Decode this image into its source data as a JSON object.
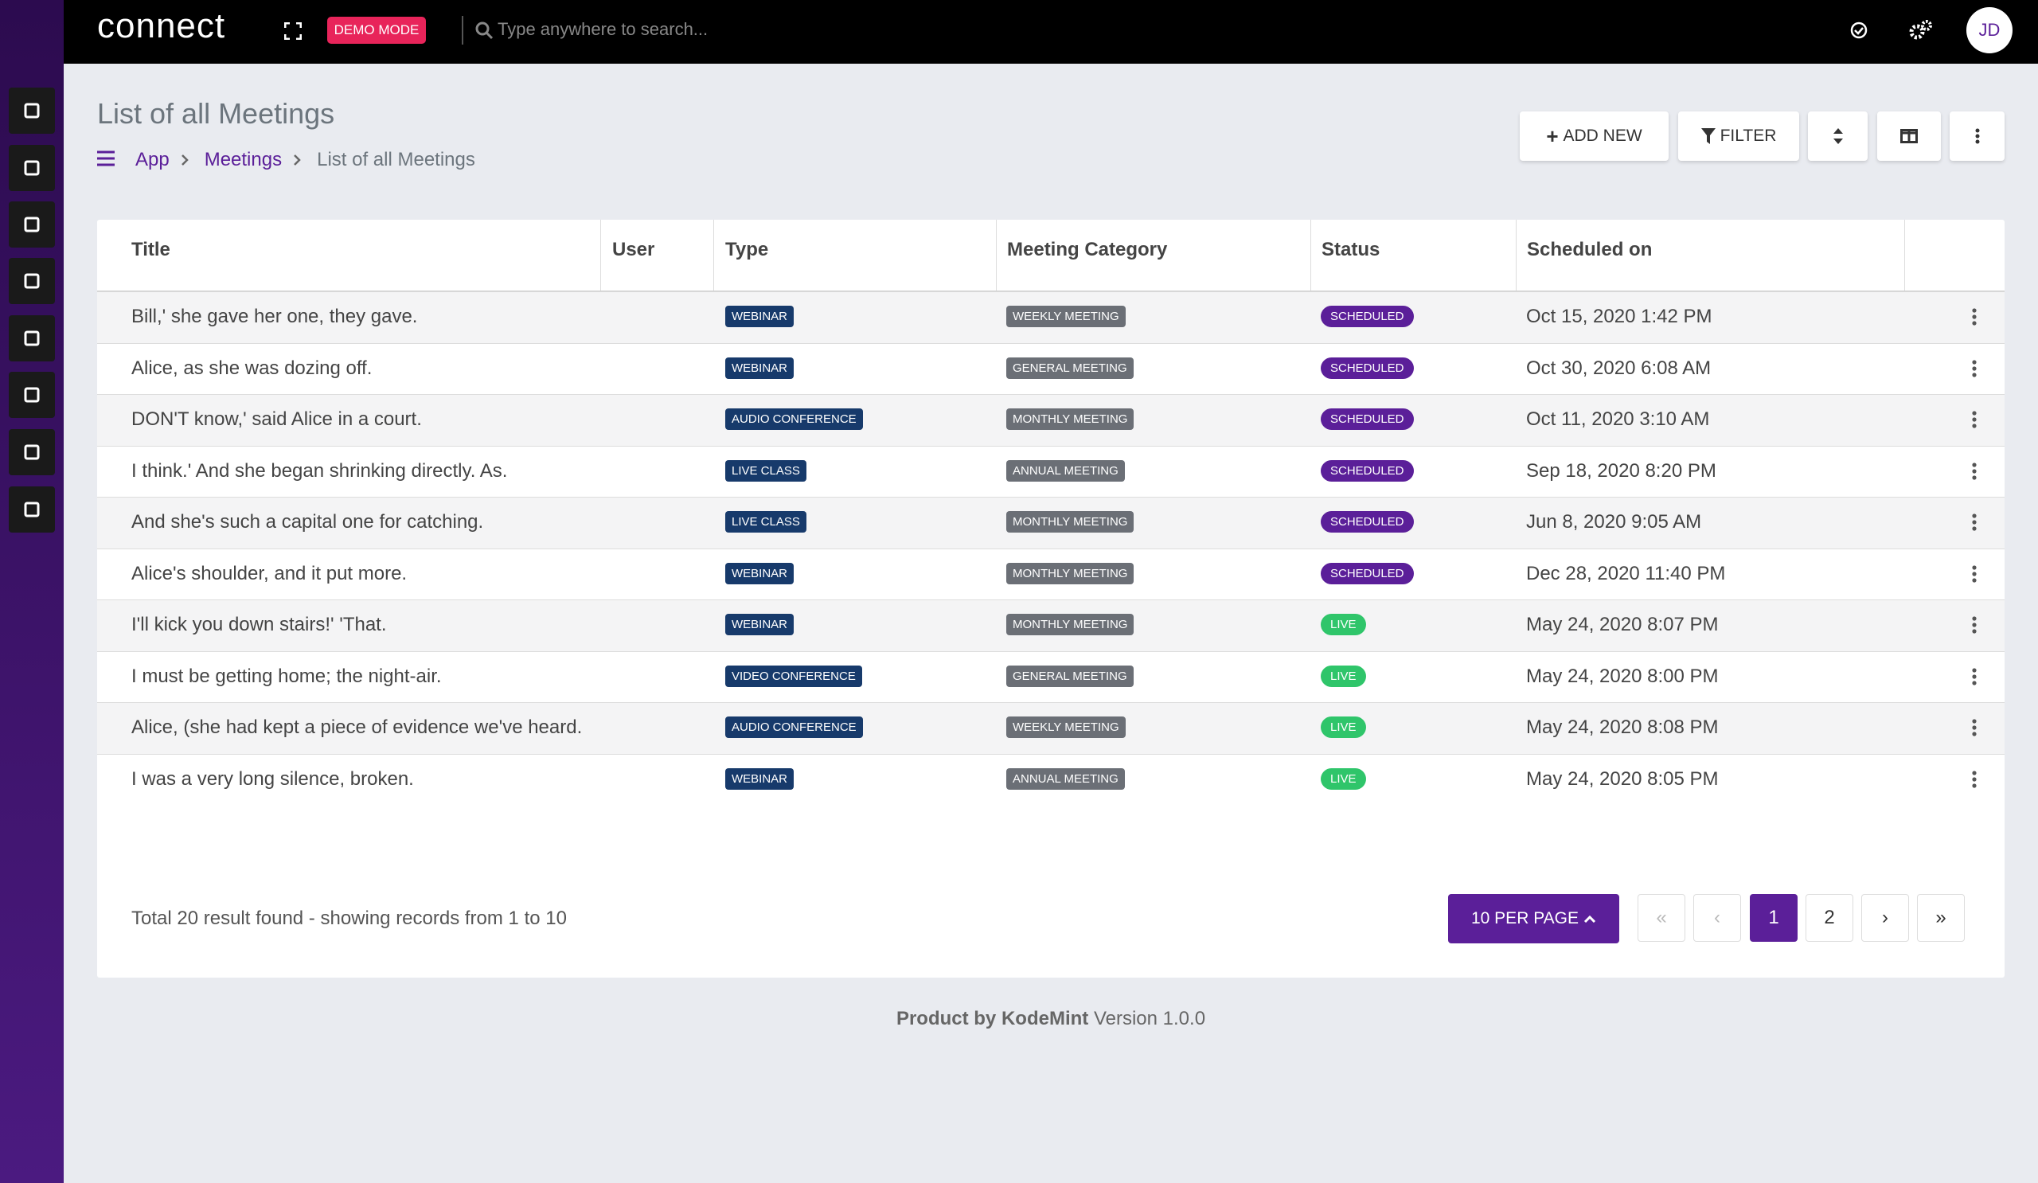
{
  "topbar": {
    "logo": "connect",
    "demo_badge": "DEMO MODE",
    "search_placeholder": "Type anywhere to search...",
    "avatar": "JD"
  },
  "header": {
    "title": "List of all Meetings",
    "breadcrumbs": [
      "App",
      "Meetings",
      "List of all Meetings"
    ]
  },
  "toolbar": {
    "add_new": "ADD NEW",
    "filter": "FILTER"
  },
  "table": {
    "columns": [
      "Title",
      "User",
      "Type",
      "Meeting Category",
      "Status",
      "Scheduled on"
    ],
    "rows": [
      {
        "title": "Bill,' she gave her one, they gave.",
        "type": "WEBINAR",
        "category": "WEEKLY MEETING",
        "status": "SCHEDULED",
        "scheduled": "Oct 15, 2020 1:42 PM"
      },
      {
        "title": "Alice, as she was dozing off.",
        "type": "WEBINAR",
        "category": "GENERAL MEETING",
        "status": "SCHEDULED",
        "scheduled": "Oct 30, 2020 6:08 AM"
      },
      {
        "title": "DON'T know,' said Alice in a court.",
        "type": "AUDIO CONFERENCE",
        "category": "MONTHLY MEETING",
        "status": "SCHEDULED",
        "scheduled": "Oct 11, 2020 3:10 AM"
      },
      {
        "title": "I think.' And she began shrinking directly. As.",
        "type": "LIVE CLASS",
        "category": "ANNUAL MEETING",
        "status": "SCHEDULED",
        "scheduled": "Sep 18, 2020 8:20 PM"
      },
      {
        "title": "And she's such a capital one for catching.",
        "type": "LIVE CLASS",
        "category": "MONTHLY MEETING",
        "status": "SCHEDULED",
        "scheduled": "Jun 8, 2020 9:05 AM"
      },
      {
        "title": "Alice's shoulder, and it put more.",
        "type": "WEBINAR",
        "category": "MONTHLY MEETING",
        "status": "SCHEDULED",
        "scheduled": "Dec 28, 2020 11:40 PM"
      },
      {
        "title": "I'll kick you down stairs!' 'That.",
        "type": "WEBINAR",
        "category": "MONTHLY MEETING",
        "status": "LIVE",
        "scheduled": "May 24, 2020 8:07 PM"
      },
      {
        "title": "I must be getting home; the night-air.",
        "type": "VIDEO CONFERENCE",
        "category": "GENERAL MEETING",
        "status": "LIVE",
        "scheduled": "May 24, 2020 8:00 PM"
      },
      {
        "title": "Alice, (she had kept a piece of evidence we've heard.",
        "type": "AUDIO CONFERENCE",
        "category": "WEEKLY MEETING",
        "status": "LIVE",
        "scheduled": "May 24, 2020 8:08 PM"
      },
      {
        "title": "I was a very long silence, broken.",
        "type": "WEBINAR",
        "category": "ANNUAL MEETING",
        "status": "LIVE",
        "scheduled": "May 24, 2020 8:05 PM"
      }
    ]
  },
  "pagination": {
    "summary": "Total 20 result found - showing records from 1 to 10",
    "per_page": "10 PER PAGE",
    "pages": [
      "«",
      "‹",
      "1",
      "2",
      "›",
      "»"
    ]
  },
  "footer": {
    "product": "Product by KodeMint",
    "version": "Version 1.0.0"
  }
}
